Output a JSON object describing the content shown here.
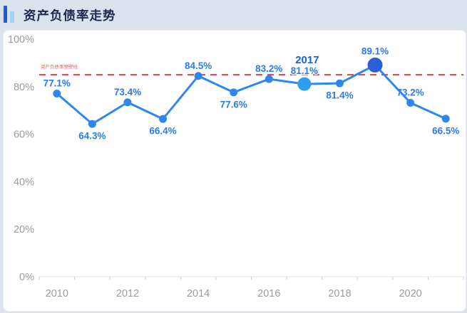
{
  "header": {
    "title": "资产负债率走势"
  },
  "colors": {
    "page_bg": "#dce1ee",
    "card_bg": "#ffffff",
    "title": "#1e2950",
    "icon_dark": "#1e57e0",
    "icon_light": "#9fd5f8",
    "line": "#2f87ee",
    "point": "#2f87ee",
    "point_emphasis_light": "#2f9df2",
    "point_emphasis_dark": "#2b61d5",
    "value_label": "#2a7ce9",
    "year_label": "#1b5fd3",
    "warning_line": "#e23c3c",
    "warning_label": "#e56060",
    "axis_line": "#e3e3e8",
    "axis_tick": "#cccccc",
    "axis_label": "#9b9ba1"
  },
  "chart_data": {
    "type": "line",
    "title": "资产负债率走势",
    "categories": [
      "2010",
      "2011",
      "2012",
      "2013",
      "2014",
      "2015",
      "2016",
      "2017",
      "2018",
      "2019",
      "2020",
      "2021"
    ],
    "values": [
      77.1,
      64.3,
      73.4,
      66.4,
      84.5,
      77.6,
      83.2,
      81.1,
      81.4,
      89.1,
      73.2,
      66.5
    ],
    "ylim": [
      0,
      100
    ],
    "y_ticks": [
      "100%",
      "80%",
      "60%",
      "40%",
      "20%",
      "0%"
    ],
    "x_ticks": [
      "2010",
      "2012",
      "2014",
      "2016",
      "2018",
      "2020"
    ],
    "grid": false,
    "legend": false,
    "warning_line": {
      "value": 85,
      "label": "资产负债率预警线"
    },
    "points": [
      {
        "x": "2010",
        "value": 77.1,
        "label": "77.1%",
        "label_pos": "above"
      },
      {
        "x": "2011",
        "value": 64.3,
        "label": "64.3%",
        "label_pos": "below"
      },
      {
        "x": "2012",
        "value": 73.4,
        "label": "73.4%",
        "label_pos": "above"
      },
      {
        "x": "2013",
        "value": 66.4,
        "label": "66.4%",
        "label_pos": "below"
      },
      {
        "x": "2014",
        "value": 84.5,
        "label": "84.5%",
        "label_pos": "above"
      },
      {
        "x": "2015",
        "value": 77.6,
        "label": "77.6%",
        "label_pos": "below"
      },
      {
        "x": "2016",
        "value": 83.2,
        "label": "83.2%",
        "label_pos": "above"
      },
      {
        "x": "2017",
        "value": 81.1,
        "label": "81.1%",
        "label_pos": "above",
        "emphasis": "light",
        "year_label": "2017"
      },
      {
        "x": "2018",
        "value": 81.4,
        "label": "81.4%",
        "label_pos": "below"
      },
      {
        "x": "2019",
        "value": 89.1,
        "label": "89.1%",
        "label_pos": "above",
        "emphasis": "dark"
      },
      {
        "x": "2020",
        "value": 73.2,
        "label": "73.2%",
        "label_pos": "above"
      },
      {
        "x": "2021",
        "value": 66.5,
        "label": "66.5%",
        "label_pos": "below"
      }
    ]
  }
}
